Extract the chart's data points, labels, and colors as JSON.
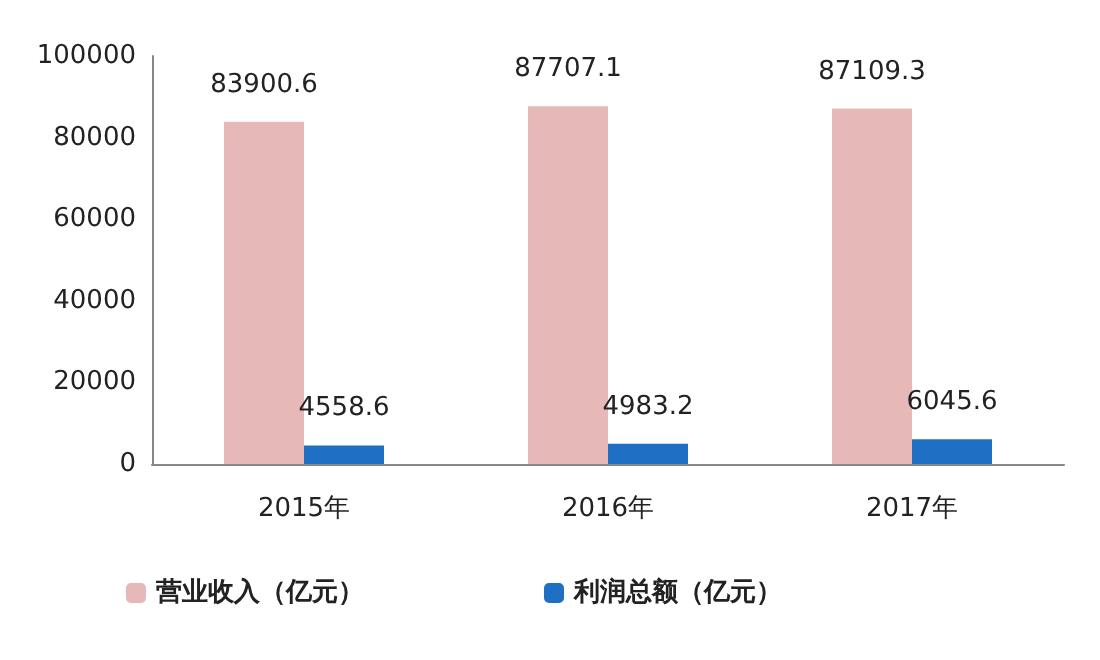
{
  "chart_data": {
    "type": "bar",
    "categories": [
      "2015年",
      "2016年",
      "2017年"
    ],
    "series": [
      {
        "name": "营业收入（亿元）",
        "color": "#e6b9b8",
        "values": [
          83900.6,
          87707.1,
          87109.3
        ]
      },
      {
        "name": "利润总额（亿元）",
        "color": "#1f6fc5",
        "values": [
          4558.6,
          4983.2,
          6045.6
        ]
      }
    ],
    "ylim": [
      0,
      100000
    ],
    "yticks": [
      0,
      20000,
      40000,
      60000,
      80000,
      100000
    ],
    "grid": false,
    "legend": "bottom left",
    "data_labels": true
  }
}
